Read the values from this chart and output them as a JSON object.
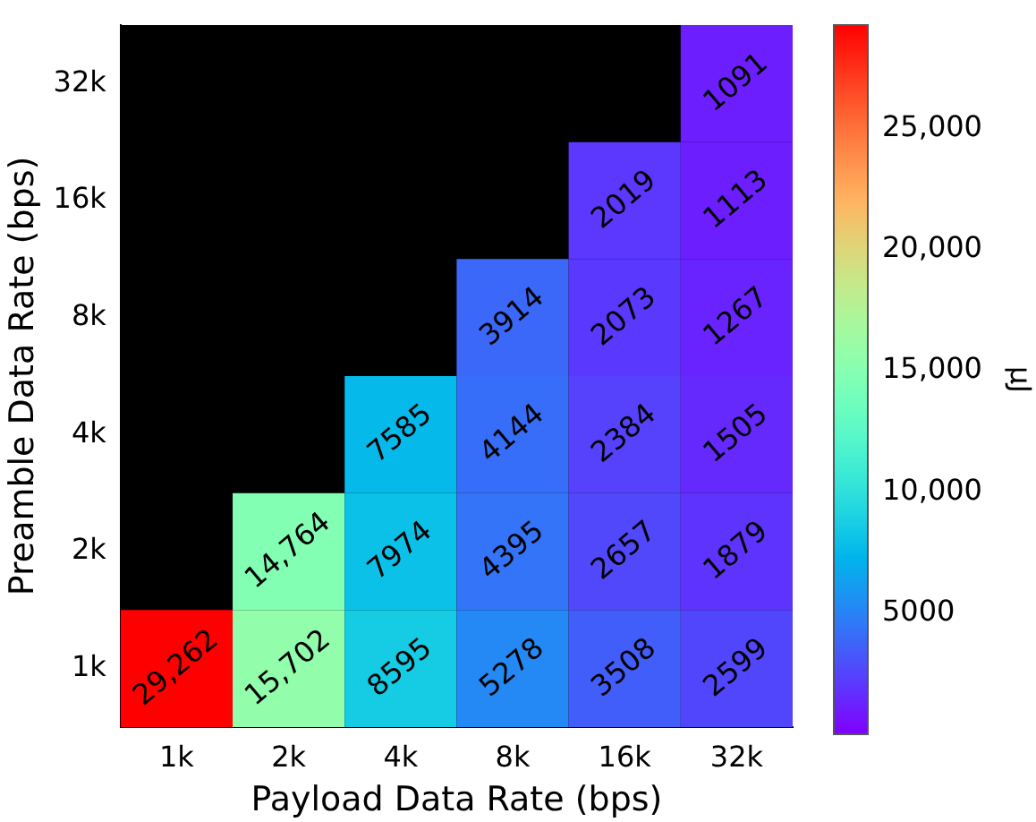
{
  "chart_data": {
    "type": "heatmap",
    "xlabel": "Payload Data Rate (bps)",
    "ylabel": "Preamble Data Rate (bps)",
    "clabel": "μJ",
    "categories": [
      "1k",
      "2k",
      "4k",
      "8k",
      "16k",
      "32k"
    ],
    "y_categories": [
      "32k",
      "16k",
      "8k",
      "4k",
      "2k",
      "1k"
    ],
    "cells": [
      [
        null,
        null,
        null,
        null,
        null,
        1091
      ],
      [
        null,
        null,
        null,
        null,
        2019,
        1113
      ],
      [
        null,
        null,
        null,
        3914,
        2073,
        1267
      ],
      [
        null,
        null,
        7585,
        4144,
        2384,
        1505
      ],
      [
        null,
        14764,
        7974,
        4395,
        2657,
        1879
      ],
      [
        29262,
        15702,
        8595,
        5278,
        3508,
        2599
      ]
    ],
    "cell_labels": [
      [
        null,
        null,
        null,
        null,
        null,
        "1091"
      ],
      [
        null,
        null,
        null,
        null,
        "2019",
        "1113"
      ],
      [
        null,
        null,
        null,
        "3914",
        "2073",
        "1267"
      ],
      [
        null,
        null,
        "7585",
        "4144",
        "2384",
        "1505"
      ],
      [
        null,
        "14,764",
        "7974",
        "4395",
        "2657",
        "1879"
      ],
      [
        "29,262",
        "15,702",
        "8595",
        "5278",
        "3508",
        "2599"
      ]
    ],
    "clim": [
      0,
      29262
    ],
    "cticks": [
      {
        "value": 5000,
        "label": "5000"
      },
      {
        "value": 10000,
        "label": "10,000"
      },
      {
        "value": 15000,
        "label": "15,000"
      },
      {
        "value": 20000,
        "label": "20,000"
      },
      {
        "value": 25000,
        "label": "25,000"
      }
    ],
    "grid": false,
    "legend": false
  }
}
